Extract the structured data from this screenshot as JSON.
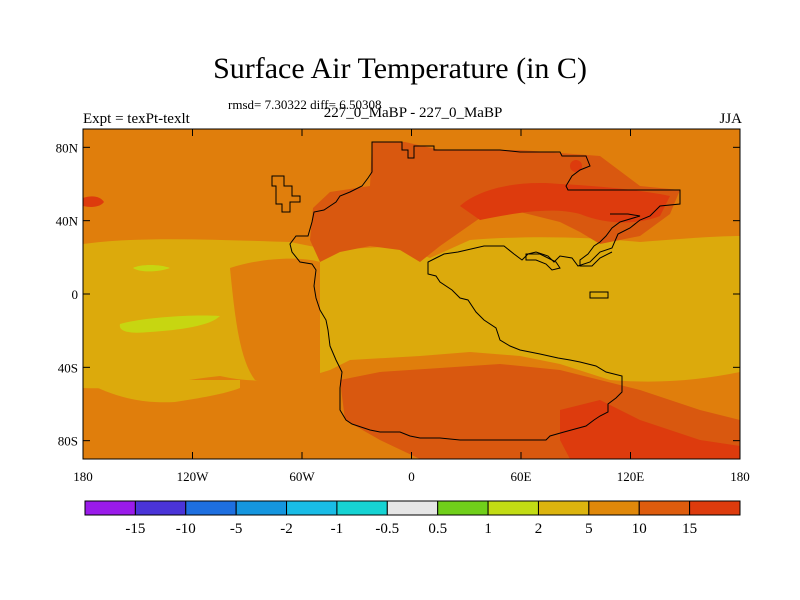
{
  "title": "Surface Air Temperature (in C)",
  "stats": "rmsd= 7.30322 diff= 6.50308",
  "experiment": "Expt = texPt-texlt",
  "subtitle": "227_0_MaBP - 227_0_MaBP",
  "season": "JJA",
  "map": {
    "y_ticks": [
      "80N",
      "40N",
      "0",
      "40S",
      "80S"
    ],
    "x_ticks": [
      "180",
      "120W",
      "60W",
      "0",
      "60E",
      "120E",
      "180"
    ],
    "colors": {
      "base": "#e07e0c",
      "warm": "#d9580f",
      "hot": "#dd3b0d",
      "mild": "#dcaa0c",
      "cool": "#c7d611"
    }
  },
  "colorbar": {
    "colors": [
      "#9a1bea",
      "#4a34d8",
      "#1e6fe0",
      "#1596df",
      "#19bce6",
      "#16d3d3",
      "#e6e6e6",
      "#70cf1a",
      "#c2dc14",
      "#dcb40e",
      "#e0880a",
      "#de5c0d",
      "#dd3b0d"
    ],
    "labels": [
      "-15",
      "-10",
      "-5",
      "-2",
      "-1",
      "-0.5",
      "0.5",
      "1",
      "2",
      "5",
      "10",
      "15"
    ]
  }
}
